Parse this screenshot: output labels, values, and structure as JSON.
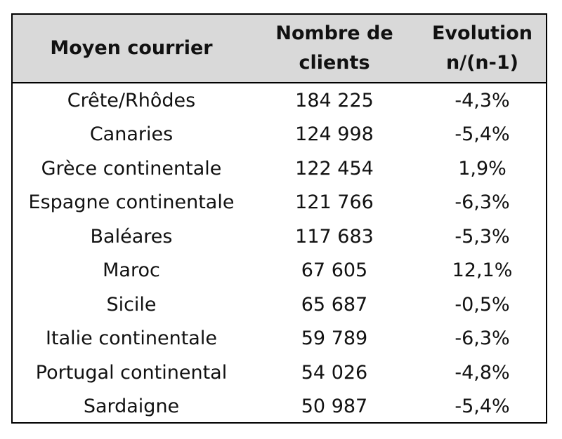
{
  "chart_data": {
    "type": "table",
    "columns": [
      "Moyen courrier",
      "Nombre de\nclients",
      "Evolution\nn/(n-1)"
    ],
    "rows": [
      [
        "Crête/Rhôdes",
        "184 225",
        "-4,3%"
      ],
      [
        "Canaries",
        "124 998",
        "-5,4%"
      ],
      [
        "Grèce continentale",
        "122 454",
        "1,9%"
      ],
      [
        "Espagne continentale",
        "121 766",
        "-6,3%"
      ],
      [
        "Baléares",
        "117 683",
        "-5,3%"
      ],
      [
        "Maroc",
        "67 605",
        "12,1%"
      ],
      [
        "Sicile",
        "65 687",
        "-0,5%"
      ],
      [
        "Italie continentale",
        "59 789",
        "-6,3%"
      ],
      [
        "Portugal continental",
        "54 026",
        "-4,8%"
      ],
      [
        "Sardaigne",
        "50 987",
        "-5,4%"
      ]
    ],
    "header_background": "#d9d9d9",
    "border_color": "#000000"
  }
}
